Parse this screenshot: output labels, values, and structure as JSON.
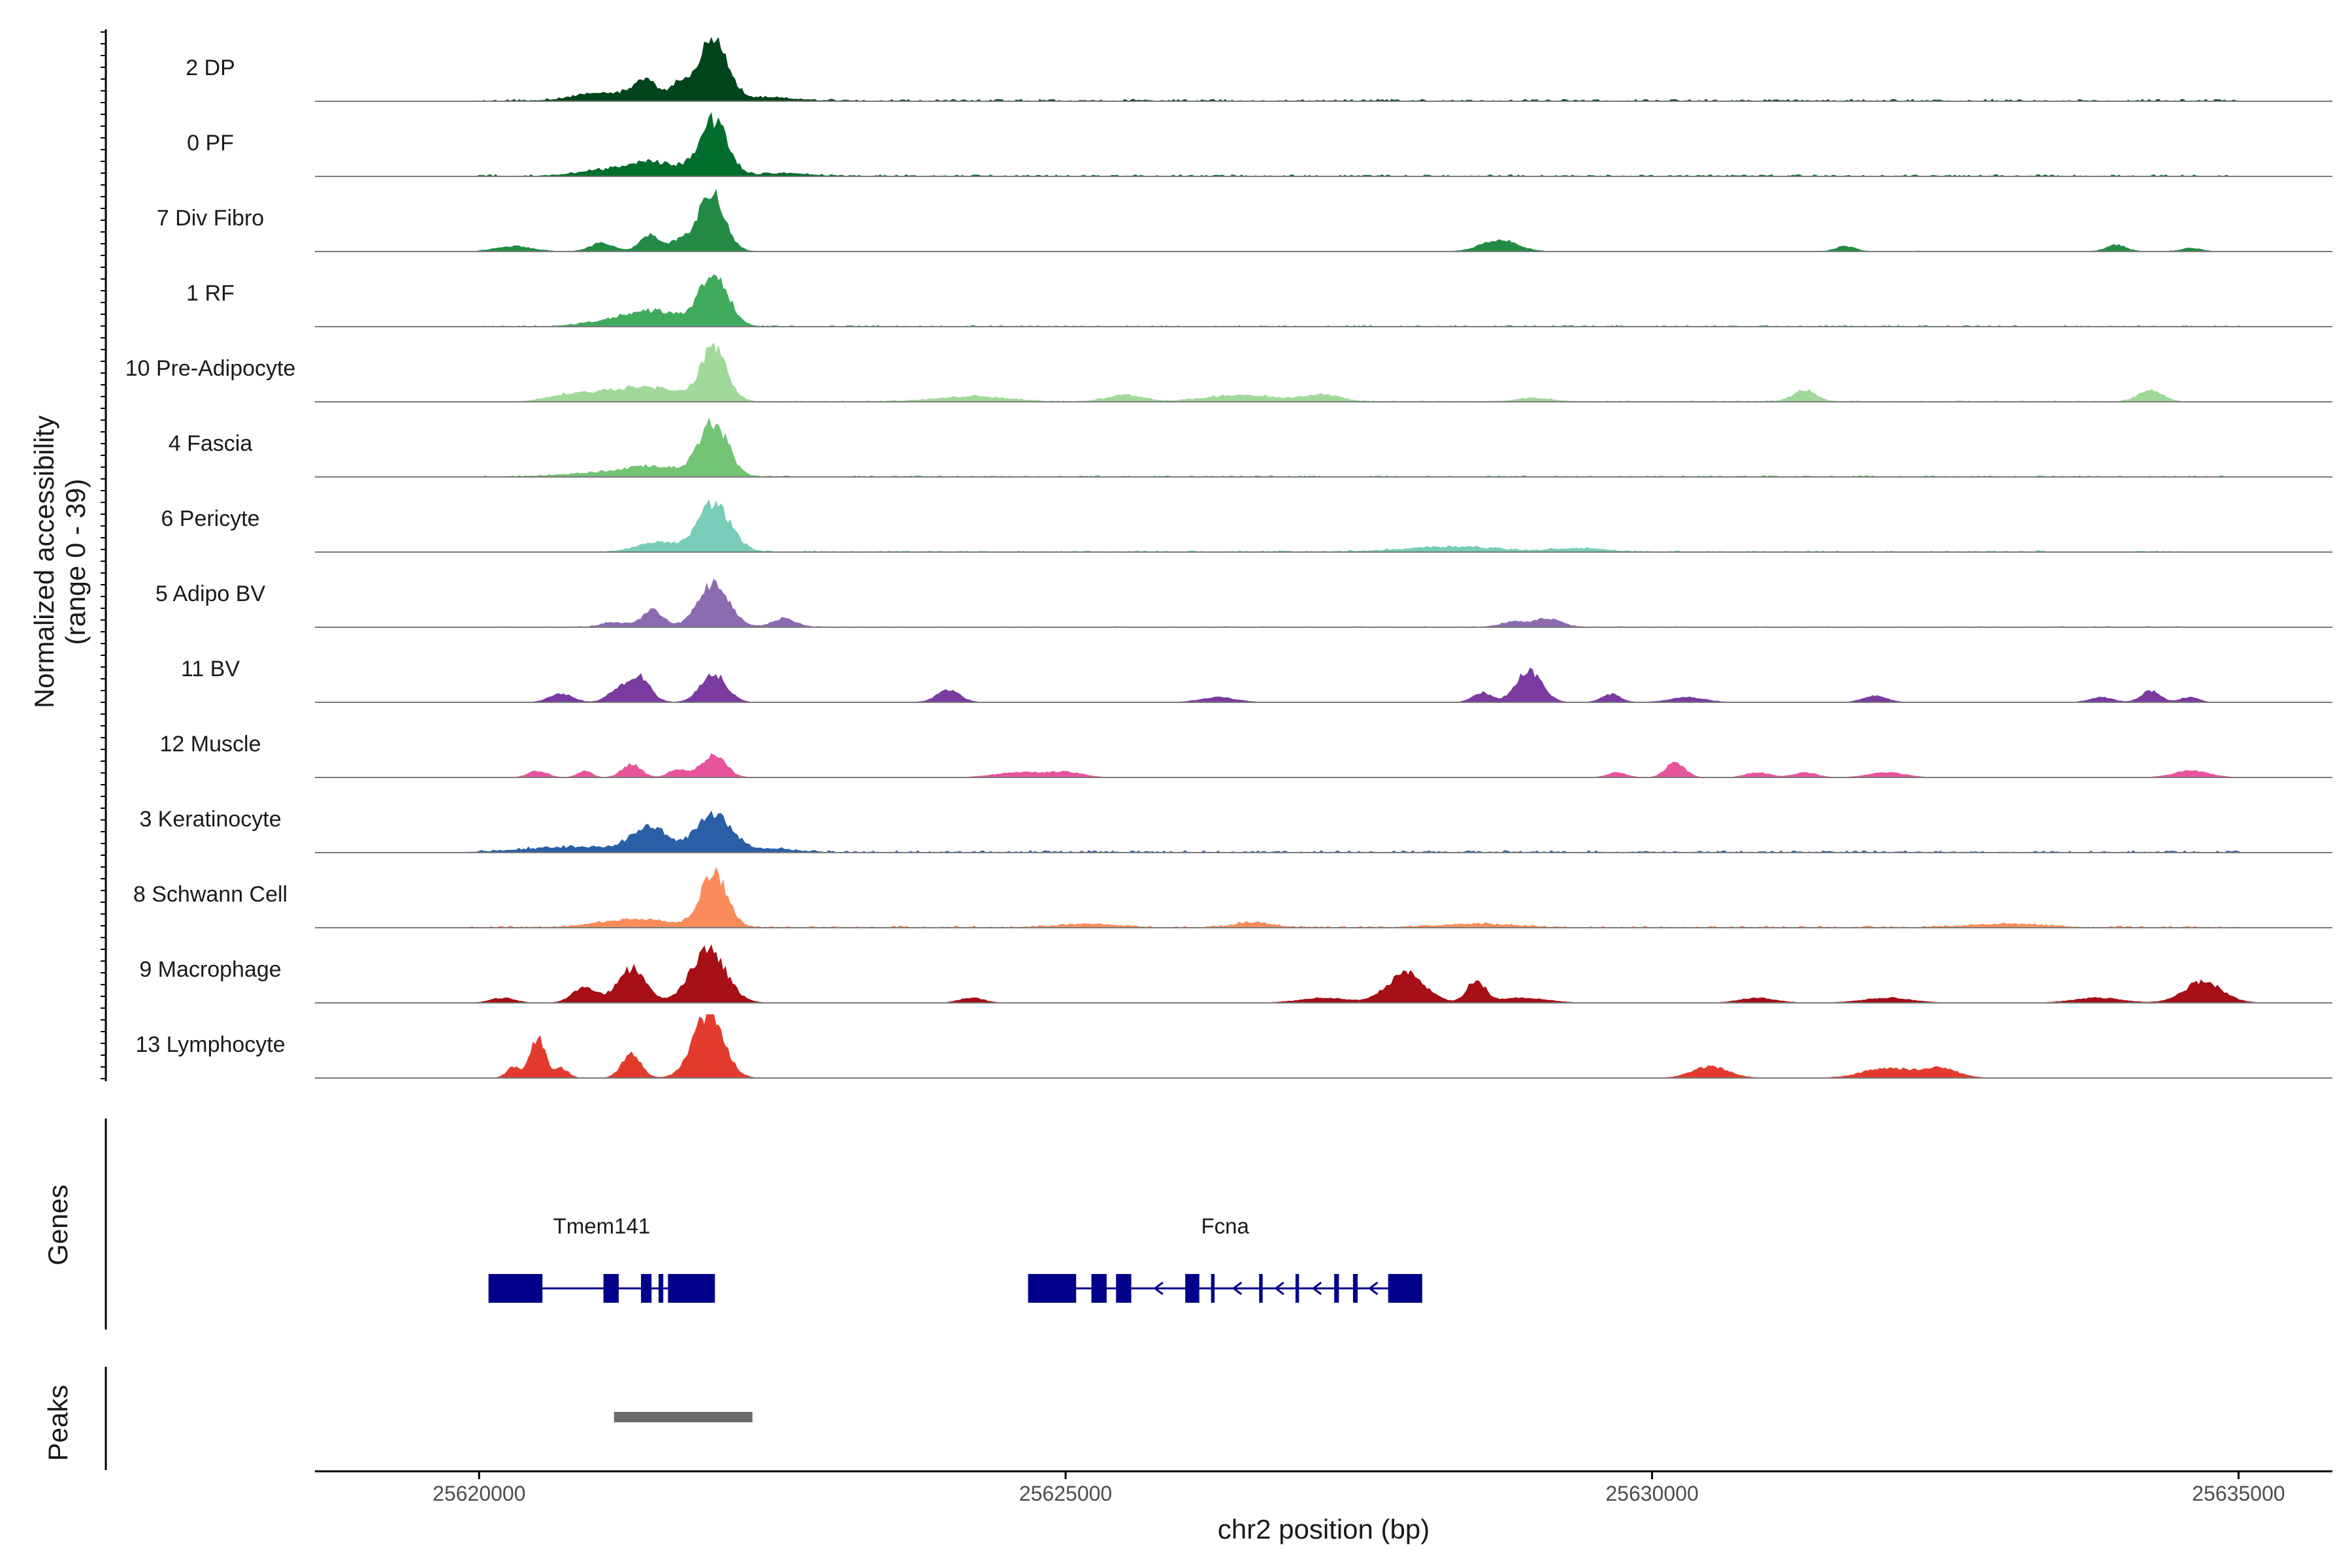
{
  "chart_data": {
    "type": "area",
    "title": "",
    "ylabel_line1": "Normalized accessibility",
    "ylabel_line2": "(range 0 - 39)",
    "y_range": [
      0,
      39
    ],
    "xlabel": "chr2 position (bp)",
    "x_range": [
      25618600,
      25635800
    ],
    "x_ticks": [
      25620000,
      25625000,
      25630000,
      25635000
    ],
    "x_tick_labels": [
      "25620000",
      "25625000",
      "25630000",
      "25635000"
    ],
    "genes_label": "Genes",
    "peaks_label": "Peaks",
    "tracks": [
      {
        "name": "2 DP",
        "color": "#00441b",
        "peaks": [
          [
            25622000,
            39,
            120
          ],
          [
            25621420,
            12,
            90
          ],
          [
            25621700,
            10,
            80
          ],
          [
            25621100,
            5,
            250
          ],
          [
            25622500,
            2,
            200
          ]
        ],
        "noise": {
          "start": 25620000,
          "end": 25635000,
          "level": 1.2
        }
      },
      {
        "name": "0 PF",
        "color": "#006d2c",
        "peaks": [
          [
            25622000,
            33,
            120
          ],
          [
            25621500,
            8,
            220
          ],
          [
            25621100,
            3,
            250
          ],
          [
            25622600,
            1.5,
            200
          ]
        ],
        "noise": {
          "start": 25620000,
          "end": 25635000,
          "level": 1.0
        }
      },
      {
        "name": "7 Div Fibro",
        "color": "#238b45",
        "peaks": [
          [
            25621980,
            36,
            110
          ],
          [
            25621450,
            10,
            80
          ],
          [
            25621700,
            6,
            90
          ],
          [
            25621050,
            5,
            100
          ],
          [
            25620300,
            3,
            150
          ],
          [
            25628700,
            7,
            150
          ],
          [
            25631650,
            3,
            80
          ],
          [
            25633960,
            4,
            80
          ],
          [
            25634600,
            2,
            80
          ]
        ],
        "noise": {
          "start": 25620000,
          "end": 25635000,
          "level": 0.3
        }
      },
      {
        "name": "1 RF",
        "color": "#41ab5d",
        "peaks": [
          [
            25622000,
            32,
            120
          ],
          [
            25621500,
            9,
            220
          ],
          [
            25621100,
            3,
            200
          ]
        ],
        "noise": {
          "start": 25620000,
          "end": 25635000,
          "level": 0.8
        }
      },
      {
        "name": "10 Pre-Adipocyte",
        "color": "#a1d99b",
        "peaks": [
          [
            25622000,
            32,
            110
          ],
          [
            25621400,
            9,
            300
          ],
          [
            25620800,
            4,
            200
          ],
          [
            25624200,
            3,
            300
          ],
          [
            25625500,
            4,
            150
          ],
          [
            25626500,
            4,
            300
          ],
          [
            25627200,
            4,
            150
          ],
          [
            25631300,
            7,
            100
          ],
          [
            25634250,
            7,
            100
          ],
          [
            25629000,
            2,
            150
          ]
        ],
        "noise": {
          "start": 25620500,
          "end": 25634500,
          "level": 0.6
        }
      },
      {
        "name": "4 Fascia",
        "color": "#74c476",
        "peaks": [
          [
            25622000,
            32,
            120
          ],
          [
            25621500,
            6,
            250
          ],
          [
            25621000,
            2,
            300
          ]
        ],
        "noise": {
          "start": 25620000,
          "end": 25635000,
          "level": 0.8
        }
      },
      {
        "name": "6 Pericyte",
        "color": "#78cdb8",
        "peaks": [
          [
            25622000,
            29,
            140
          ],
          [
            25621500,
            6,
            150
          ],
          [
            25628300,
            3,
            400
          ],
          [
            25629400,
            2,
            200
          ]
        ],
        "noise": {
          "start": 25621000,
          "end": 25634500,
          "level": 0.8
        }
      },
      {
        "name": "5 Adipo BV",
        "color": "#8c6bb1",
        "peaks": [
          [
            25622000,
            27,
            130
          ],
          [
            25621480,
            10,
            90
          ],
          [
            25622600,
            5,
            100
          ],
          [
            25621150,
            3,
            100
          ],
          [
            25629100,
            5,
            120
          ],
          [
            25628800,
            3,
            100
          ]
        ],
        "noise": {
          "start": 25620000,
          "end": 25634500,
          "level": 0.4
        }
      },
      {
        "name": "11 BV",
        "color": "#7a3aa0",
        "peaks": [
          [
            25622000,
            17,
            110
          ],
          [
            25621350,
            16,
            100
          ],
          [
            25628950,
            19,
            110
          ],
          [
            25620700,
            5,
            100
          ],
          [
            25621150,
            5,
            80
          ],
          [
            25624000,
            7,
            100
          ],
          [
            25626300,
            3,
            150
          ],
          [
            25628550,
            6,
            80
          ],
          [
            25629650,
            5,
            80
          ],
          [
            25630300,
            3,
            150
          ],
          [
            25631900,
            4,
            100
          ],
          [
            25633830,
            3,
            100
          ],
          [
            25634250,
            7,
            80
          ],
          [
            25634580,
            3,
            80
          ]
        ],
        "noise": null
      },
      {
        "name": "12 Muscle",
        "color": "#e7549c",
        "peaks": [
          [
            25622000,
            14,
            100
          ],
          [
            25621300,
            8,
            80
          ],
          [
            25621700,
            5,
            80
          ],
          [
            25620500,
            4,
            80
          ],
          [
            25620900,
            4,
            60
          ],
          [
            25624600,
            3,
            200
          ],
          [
            25625000,
            3,
            150
          ],
          [
            25629700,
            3,
            80
          ],
          [
            25630200,
            9,
            80
          ],
          [
            25630900,
            3,
            100
          ],
          [
            25631300,
            3,
            100
          ],
          [
            25632000,
            3,
            150
          ],
          [
            25634600,
            4,
            150
          ]
        ],
        "noise": null
      },
      {
        "name": "3 Keratinocyte",
        "color": "#2b60a8",
        "peaks": [
          [
            25622000,
            24,
            150
          ],
          [
            25621450,
            15,
            150
          ],
          [
            25620800,
            3,
            400
          ],
          [
            25622500,
            2,
            200
          ]
        ],
        "noise": {
          "start": 25620000,
          "end": 25635000,
          "level": 1.2
        }
      },
      {
        "name": "8 Schwann Cell",
        "color": "#f98c5a",
        "peaks": [
          [
            25622000,
            33,
            110
          ],
          [
            25621350,
            5,
            300
          ],
          [
            25626600,
            3,
            150
          ],
          [
            25625200,
            2,
            250
          ],
          [
            25628500,
            2,
            300
          ],
          [
            25633000,
            2,
            300
          ]
        ],
        "noise": {
          "start": 25619800,
          "end": 25635000,
          "level": 1.0
        }
      },
      {
        "name": "9 Macrophage",
        "color": "#a50f15",
        "peaks": [
          [
            25621950,
            32,
            150
          ],
          [
            25621300,
            21,
            120
          ],
          [
            25620900,
            10,
            100
          ],
          [
            25627900,
            18,
            160
          ],
          [
            25628500,
            13,
            80
          ],
          [
            25634700,
            13,
            160
          ],
          [
            25632000,
            3,
            200
          ],
          [
            25627200,
            3,
            200
          ],
          [
            25628900,
            3,
            200
          ],
          [
            25630900,
            3,
            150
          ],
          [
            25624200,
            3,
            100
          ],
          [
            25620200,
            3,
            100
          ],
          [
            25633800,
            3,
            200
          ]
        ],
        "noise": null
      },
      {
        "name": "13 Lymphocyte",
        "color": "#e23b2e",
        "peaks": [
          [
            25621950,
            39,
            130
          ],
          [
            25620500,
            25,
            60
          ],
          [
            25621300,
            15,
            80
          ],
          [
            25620300,
            7,
            60
          ],
          [
            25620700,
            6,
            60
          ],
          [
            25630500,
            7,
            150
          ],
          [
            25632000,
            6,
            200
          ],
          [
            25632450,
            6,
            150
          ]
        ],
        "noise": null
      }
    ],
    "genes": [
      {
        "name": "Tmem141",
        "start": 25620080,
        "end": 25622010,
        "strand": "+",
        "exons": [
          [
            25620080,
            25620540
          ],
          [
            25621060,
            25621190
          ],
          [
            25621380,
            25621470
          ],
          [
            25621530,
            25621570
          ],
          [
            25621610,
            25622010
          ]
        ]
      },
      {
        "name": "Fcna",
        "start": 25624680,
        "end": 25628040,
        "strand": "-",
        "exons": [
          [
            25624680,
            25625090
          ],
          [
            25625220,
            25625350
          ],
          [
            25625430,
            25625560
          ],
          [
            25626020,
            25626140
          ],
          [
            25626240,
            25626270
          ],
          [
            25626650,
            25626680
          ],
          [
            25626960,
            25626990
          ],
          [
            25627290,
            25627330
          ],
          [
            25627450,
            25627490
          ],
          [
            25627750,
            25628040
          ]
        ]
      }
    ],
    "peaks": [
      [
        25621150,
        25622330
      ]
    ],
    "gene_color": "#00008b",
    "peak_color": "#6b6b6b",
    "axis_color": "#000000",
    "baseline_color": "#7a7a7a"
  }
}
